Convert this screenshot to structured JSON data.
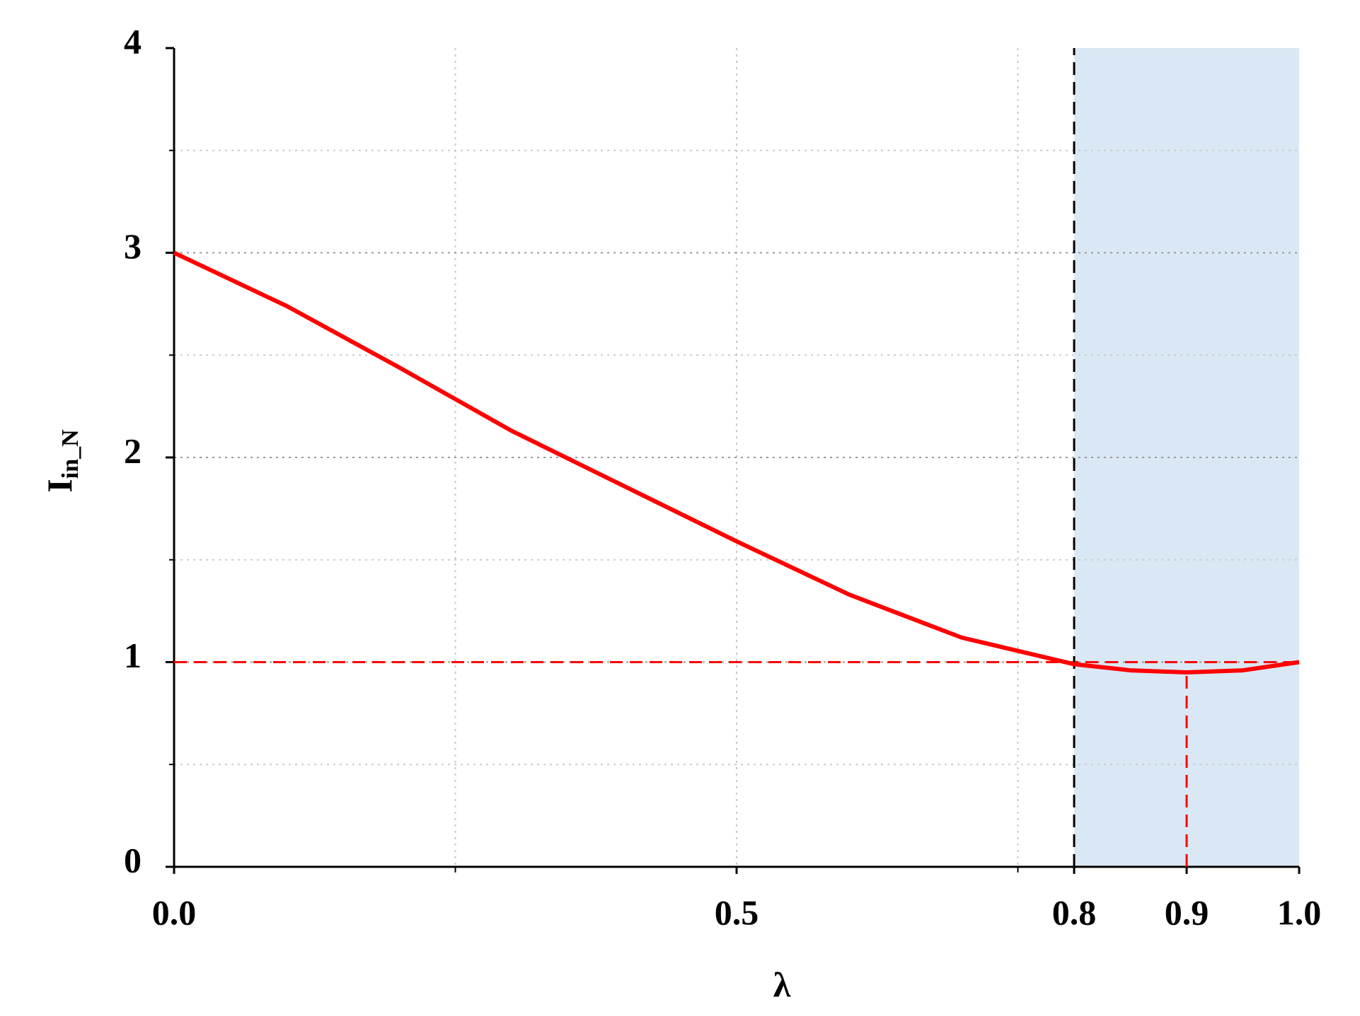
{
  "chart_data": {
    "type": "line",
    "xlabel": "λ",
    "ylabel": "I",
    "ylabel_subscript": "in_N",
    "x": [
      0,
      0.1,
      0.2,
      0.3,
      0.4,
      0.5,
      0.6,
      0.7,
      0.8,
      0.85,
      0.9,
      0.95,
      1.0
    ],
    "series": [
      {
        "color": "#ff0000",
        "values": [
          3,
          2.74,
          2.44,
          2.13,
          1.86,
          1.59,
          1.33,
          1.12,
          0.99,
          0.96,
          0.95,
          0.96,
          1.0
        ]
      }
    ],
    "xlim": [
      0,
      1
    ],
    "ylim": [
      0,
      4
    ],
    "xticks": [
      {
        "value": 0,
        "label": "0.0"
      },
      0.5,
      0.8,
      0.9,
      {
        "value": 1,
        "label": "1.0"
      }
    ],
    "yticks": [
      0,
      1,
      2,
      3,
      4
    ],
    "xgrid": [
      0.25,
      0.5,
      0.75
    ],
    "ygrid": [
      0.5,
      1,
      1.5,
      2,
      2.5,
      3,
      3.5
    ],
    "shade": {
      "range": [
        0.8,
        1.0
      ],
      "color": "#dae8f5"
    },
    "hlines": [
      {
        "y": 1,
        "color": "#ff0000"
      }
    ],
    "vlines": [
      {
        "x": 0.8,
        "ymax": 4,
        "color": "#000000"
      },
      {
        "x": 0.9,
        "ymax": 0.95,
        "color": "#ff0000"
      }
    ],
    "grid": true
  }
}
